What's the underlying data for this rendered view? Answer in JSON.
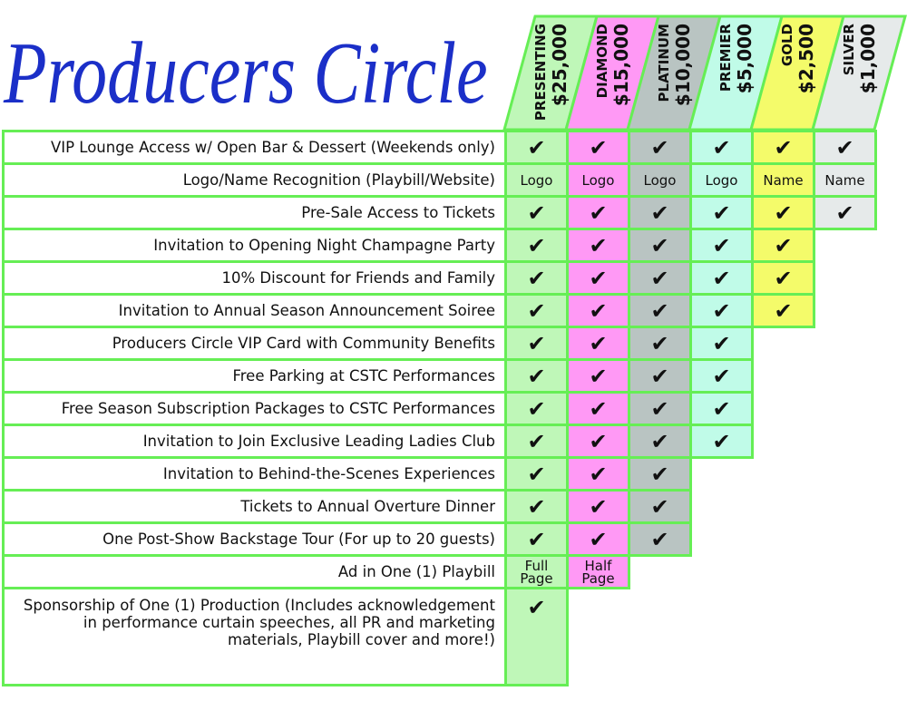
{
  "title": "Producers Circle",
  "colors": {
    "border": "#66ee55",
    "title": "#1b2fc8"
  },
  "tiers": [
    {
      "name": "PRESENTING",
      "amount": "$25,000",
      "color": "#bff7b8"
    },
    {
      "name": "DIAMOND",
      "amount": "$15,000",
      "color": "#ff99f5"
    },
    {
      "name": "PLATINUM",
      "amount": "$10,000",
      "color": "#b9c4c2"
    },
    {
      "name": "PREMIER",
      "amount": "$5,000",
      "color": "#c0fbe8"
    },
    {
      "name": "GOLD",
      "amount": "$2,500",
      "color": "#f4fb6a"
    },
    {
      "name": "SILVER",
      "amount": "$1,000",
      "color": "#e6eaea"
    }
  ],
  "check_icon": "✔",
  "rows": [
    {
      "label": "VIP Lounge Access w/ Open Bar & Dessert (Weekends only)",
      "values": [
        "check",
        "check",
        "check",
        "check",
        "check",
        "check"
      ]
    },
    {
      "label": "Logo/Name Recognition (Playbill/Website)",
      "values": [
        "Logo",
        "Logo",
        "Logo",
        "Logo",
        "Name",
        "Name"
      ]
    },
    {
      "label": "Pre-Sale Access to Tickets",
      "values": [
        "check",
        "check",
        "check",
        "check",
        "check",
        "check"
      ]
    },
    {
      "label": "Invitation to Opening Night Champagne Party",
      "values": [
        "check",
        "check",
        "check",
        "check",
        "check"
      ]
    },
    {
      "label": "10% Discount for Friends and Family",
      "values": [
        "check",
        "check",
        "check",
        "check",
        "check"
      ]
    },
    {
      "label": "Invitation to Annual Season Announcement Soiree",
      "values": [
        "check",
        "check",
        "check",
        "check",
        "check"
      ]
    },
    {
      "label": "Producers Circle VIP Card with Community Benefits",
      "values": [
        "check",
        "check",
        "check",
        "check"
      ]
    },
    {
      "label": "Free Parking at CSTC Performances",
      "values": [
        "check",
        "check",
        "check",
        "check"
      ]
    },
    {
      "label": "Free Season Subscription Packages to CSTC Performances",
      "values": [
        "check",
        "check",
        "check",
        "check"
      ]
    },
    {
      "label": "Invitation to Join Exclusive Leading Ladies Club",
      "values": [
        "check",
        "check",
        "check",
        "check"
      ]
    },
    {
      "label": "Invitation to Behind-the-Scenes Experiences",
      "values": [
        "check",
        "check",
        "check"
      ]
    },
    {
      "label": "Tickets to Annual Overture Dinner",
      "values": [
        "check",
        "check",
        "check"
      ]
    },
    {
      "label": "One Post-Show Backstage Tour (For up to 20 guests)",
      "values": [
        "check",
        "check",
        "check"
      ]
    },
    {
      "label": "Ad in One (1) Playbill",
      "values": [
        "Full Page",
        "Half Page"
      ]
    },
    {
      "label": "Sponsorship of One (1) Production (Includes acknowledgement in performance curtain speeches, all PR and marketing materials, Playbill cover and more!)",
      "values": [
        "check"
      ]
    }
  ]
}
